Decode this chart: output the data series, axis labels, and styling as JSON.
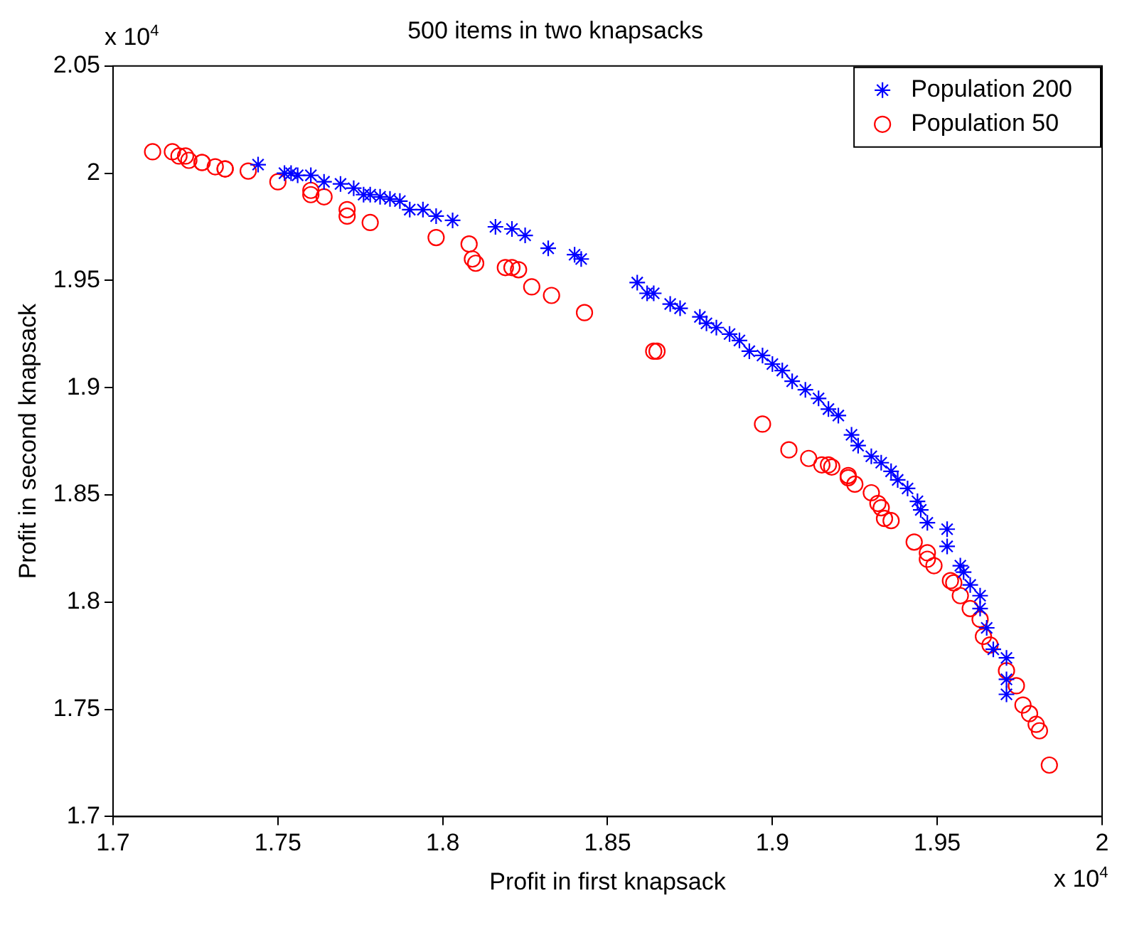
{
  "chart_data": {
    "type": "scatter",
    "title": "500 items in two knapsacks",
    "xlabel": "Profit in first knapsack",
    "ylabel": "Profit in second knapsack",
    "annotations": [
      "x 10$^{4}$",
      "x 10$^{4}$"
    ],
    "xlim": [
      1.7,
      2.0
    ],
    "xticks": [
      1.7,
      1.75,
      1.8,
      1.85,
      1.9,
      1.95,
      2
    ],
    "ylim": [
      1.7,
      2.05
    ],
    "yticks": [
      1.7,
      1.75,
      1.8,
      1.85,
      1.9,
      1.95,
      2,
      2.05
    ],
    "grid": false,
    "legend": "top right",
    "series": [
      {
        "name": "Population 200",
        "color": "#0000ff",
        "marker": "cross",
        "x": [
          1.744,
          1.752,
          1.754,
          1.756,
          1.76,
          1.764,
          1.769,
          1.773,
          1.776,
          1.778,
          1.781,
          1.784,
          1.787,
          1.79,
          1.794,
          1.798,
          1.803,
          1.816,
          1.821,
          1.825,
          1.832,
          1.84,
          1.842,
          1.859,
          1.862,
          1.864,
          1.869,
          1.872,
          1.878,
          1.88,
          1.883,
          1.887,
          1.89,
          1.893,
          1.897,
          1.9,
          1.903,
          1.906,
          1.91,
          1.914,
          1.917,
          1.92,
          1.924,
          1.926,
          1.93,
          1.933,
          1.936,
          1.938,
          1.941,
          1.944,
          1.945,
          1.947,
          1.953,
          1.953,
          1.957,
          1.958,
          1.96,
          1.963,
          1.963,
          1.965,
          1.967,
          1.971,
          1.971,
          1.971
        ],
        "values": [
          2.004,
          2.0,
          2.0,
          1.999,
          1.999,
          1.996,
          1.995,
          1.993,
          1.99,
          1.99,
          1.989,
          1.988,
          1.987,
          1.983,
          1.983,
          1.98,
          1.978,
          1.975,
          1.974,
          1.971,
          1.965,
          1.962,
          1.96,
          1.949,
          1.944,
          1.944,
          1.939,
          1.937,
          1.933,
          1.93,
          1.928,
          1.925,
          1.922,
          1.917,
          1.915,
          1.911,
          1.908,
          1.903,
          1.899,
          1.895,
          1.89,
          1.887,
          1.878,
          1.873,
          1.868,
          1.865,
          1.861,
          1.857,
          1.853,
          1.847,
          1.843,
          1.837,
          1.834,
          1.826,
          1.817,
          1.814,
          1.808,
          1.803,
          1.797,
          1.788,
          1.778,
          1.774,
          1.764,
          1.757
        ]
      },
      {
        "name": "Population 50",
        "color": "#ff0000",
        "marker": "circle",
        "x": [
          1.712,
          1.718,
          1.72,
          1.722,
          1.723,
          1.727,
          1.727,
          1.731,
          1.734,
          1.734,
          1.741,
          1.75,
          1.76,
          1.76,
          1.764,
          1.771,
          1.771,
          1.778,
          1.798,
          1.808,
          1.809,
          1.81,
          1.819,
          1.821,
          1.823,
          1.827,
          1.833,
          1.843,
          1.864,
          1.865,
          1.897,
          1.905,
          1.911,
          1.915,
          1.917,
          1.918,
          1.923,
          1.923,
          1.925,
          1.93,
          1.932,
          1.933,
          1.934,
          1.936,
          1.943,
          1.947,
          1.947,
          1.949,
          1.954,
          1.955,
          1.957,
          1.96,
          1.963,
          1.964,
          1.966,
          1.971,
          1.974,
          1.976,
          1.978,
          1.98,
          1.981,
          1.984
        ],
        "values": [
          2.01,
          2.01,
          2.008,
          2.008,
          2.006,
          2.005,
          2.005,
          2.003,
          2.002,
          2.002,
          2.001,
          1.996,
          1.992,
          1.99,
          1.989,
          1.983,
          1.98,
          1.977,
          1.97,
          1.967,
          1.96,
          1.958,
          1.956,
          1.956,
          1.955,
          1.947,
          1.943,
          1.935,
          1.917,
          1.917,
          1.883,
          1.871,
          1.867,
          1.864,
          1.864,
          1.863,
          1.859,
          1.858,
          1.855,
          1.851,
          1.846,
          1.844,
          1.839,
          1.838,
          1.828,
          1.823,
          1.82,
          1.817,
          1.81,
          1.809,
          1.803,
          1.797,
          1.792,
          1.784,
          1.78,
          1.768,
          1.761,
          1.752,
          1.748,
          1.743,
          1.74,
          1.724
        ]
      }
    ]
  }
}
